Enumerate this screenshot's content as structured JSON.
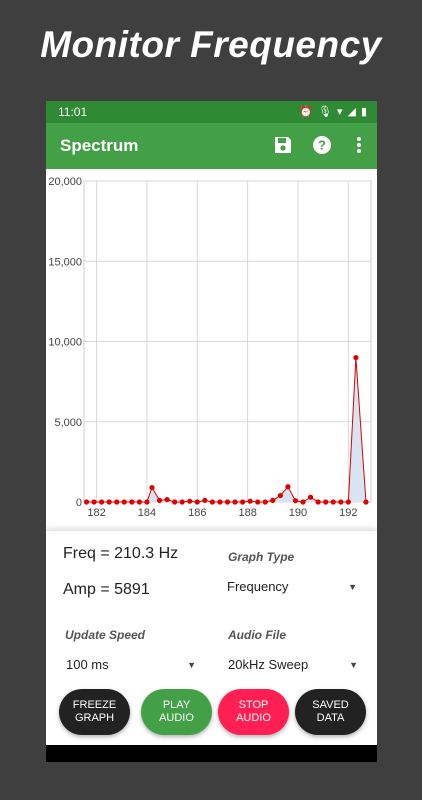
{
  "promo": {
    "title": "Monitor Frequency"
  },
  "status_bar": {
    "time": "11:01"
  },
  "app_bar": {
    "title": "Spectrum",
    "icons": [
      "save-icon",
      "help-icon",
      "more-vert-icon"
    ]
  },
  "readouts": {
    "freq": "Freq = 210.3  Hz",
    "amp": "Amp = 5891"
  },
  "fields": {
    "graph_type": {
      "label": "Graph Type",
      "value": "Frequency"
    },
    "update_speed": {
      "label": "Update Speed",
      "value": "100 ms"
    },
    "audio_file": {
      "label": "Audio File",
      "value": "20kHz Sweep"
    }
  },
  "buttons": {
    "freeze": "FREEZE\nGRAPH",
    "play": "PLAY\nAUDIO",
    "stop": "STOP\nAUDIO",
    "saved": "SAVED\nDATA"
  },
  "colors": {
    "status_bar": "#2e8b34",
    "app_bar": "#43a047",
    "line": "#e00000",
    "fill": "#d8e4f4",
    "stop": "#ff1f52"
  },
  "chart_data": {
    "type": "area",
    "xlim": [
      181.5,
      192.9
    ],
    "ylim": [
      0,
      20000
    ],
    "x_ticks": [
      182,
      184,
      186,
      188,
      190,
      192
    ],
    "x_tick_labels": [
      "182",
      "184",
      "186",
      "188",
      "190",
      "192"
    ],
    "y_ticks": [
      0,
      5000,
      10000,
      15000,
      20000
    ],
    "y_tick_labels": [
      "0",
      "5,000",
      "10,000",
      "15,000",
      "20,000"
    ],
    "grid": true,
    "series": [
      {
        "x": [
          181.6,
          181.9,
          182.2,
          182.5,
          182.8,
          183.1,
          183.4,
          183.7,
          184.0,
          184.2,
          184.5,
          184.8,
          185.1,
          185.4,
          185.7,
          186.0,
          186.3,
          186.6,
          186.9,
          187.2,
          187.5,
          187.8,
          188.1,
          188.4,
          188.7,
          189.0,
          189.3,
          189.6,
          189.9,
          190.2,
          190.5,
          190.8,
          191.1,
          191.4,
          191.7,
          192.0,
          192.3,
          192.7
        ],
        "y": [
          0,
          0,
          0,
          0,
          0,
          0,
          0,
          0,
          0,
          900,
          100,
          150,
          0,
          0,
          50,
          0,
          100,
          0,
          0,
          0,
          0,
          0,
          50,
          0,
          0,
          100,
          400,
          950,
          80,
          0,
          300,
          0,
          0,
          0,
          0,
          0,
          9000,
          0
        ]
      }
    ]
  }
}
